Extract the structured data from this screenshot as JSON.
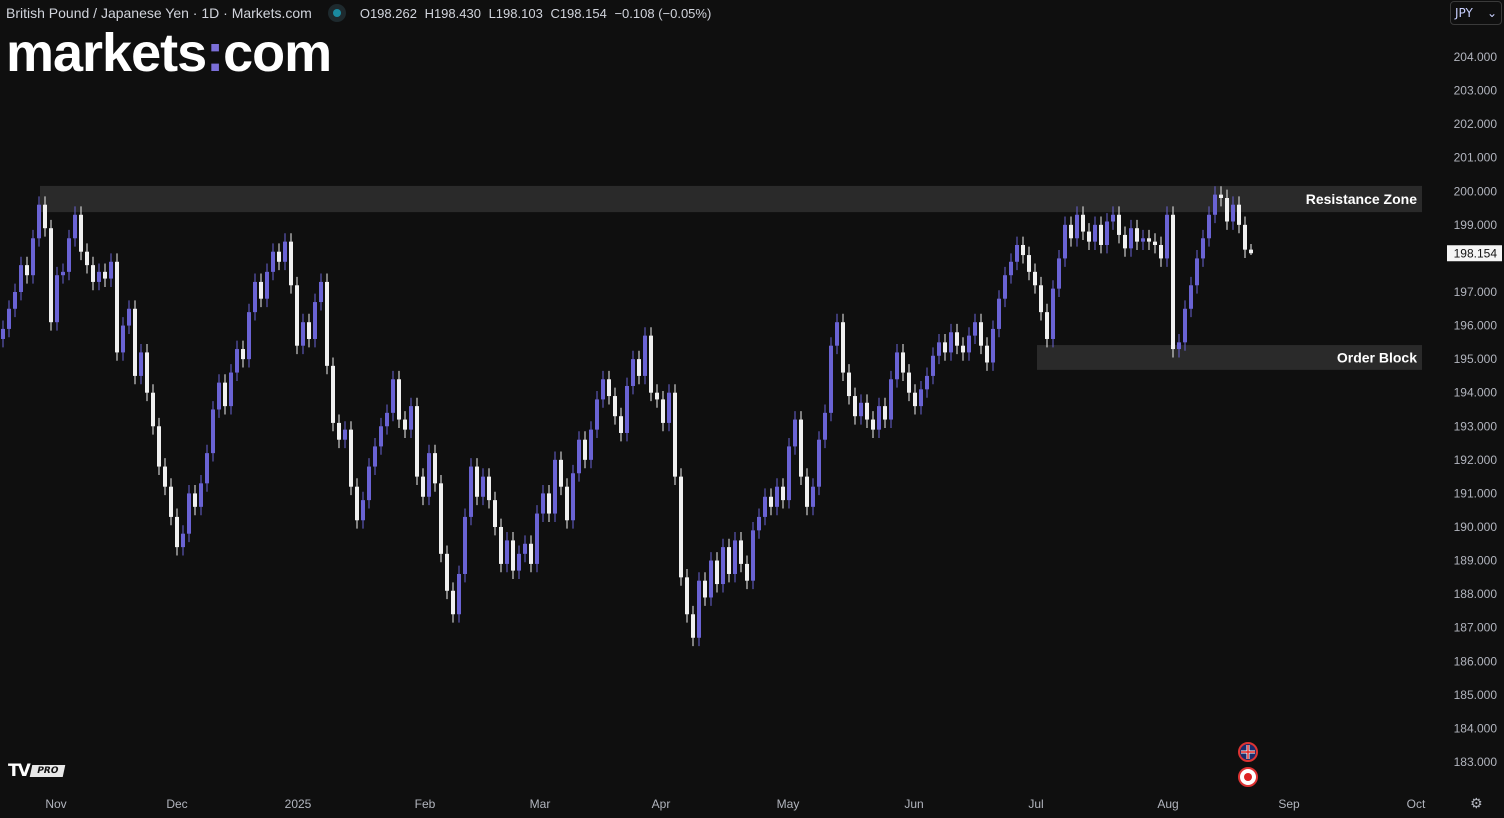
{
  "header": {
    "symbol_title": "British Pound / Japanese Yen · 1D · Markets.com",
    "ohlc": {
      "open": "O198.262",
      "high": "H198.430",
      "low": "L198.103",
      "close": "C198.154",
      "change": "−0.108 (−0.05%)"
    }
  },
  "logo": {
    "left": "markets",
    "sep": ":",
    "right": "com"
  },
  "currency_selector": {
    "value": "JPY",
    "icon": "chevron-down-icon"
  },
  "branding": {
    "tv": "TV",
    "pro": "PRO"
  },
  "events": [
    {
      "icon": "uk-flag-icon"
    },
    {
      "icon": "japan-flag-icon"
    }
  ],
  "colors": {
    "up": "#6a63d4",
    "down": "#f0f0f0",
    "zone": "#2a2a2a",
    "background": "#0f0f0f"
  },
  "chart_data": {
    "type": "candlestick",
    "title": "British Pound / Japanese Yen · 1D",
    "ylim": [
      182.7,
      204.4
    ],
    "y_ticks": [
      "204.000",
      "203.000",
      "202.000",
      "201.000",
      "200.000",
      "199.000",
      "197.000",
      "196.000",
      "195.000",
      "194.000",
      "193.000",
      "192.000",
      "191.000",
      "190.000",
      "189.000",
      "188.000",
      "187.000",
      "186.000",
      "185.000",
      "184.000",
      "183.000"
    ],
    "x_ticks": [
      "Nov",
      "Dec",
      "2025",
      "Feb",
      "Mar",
      "Apr",
      "May",
      "Jun",
      "Jul",
      "Aug",
      "Sep",
      "Oct"
    ],
    "last_price_label": "198.154",
    "last_candle": {
      "open": 198.262,
      "high": 198.43,
      "low": 198.103,
      "close": 198.154
    },
    "first_open": 195.6,
    "closes": [
      195.9,
      196.5,
      197.0,
      197.8,
      197.5,
      198.6,
      199.6,
      198.9,
      196.1,
      197.5,
      197.6,
      198.6,
      199.3,
      198.2,
      197.8,
      197.3,
      197.6,
      197.4,
      197.9,
      195.2,
      196.0,
      196.5,
      194.5,
      195.2,
      194.0,
      193.0,
      191.8,
      191.2,
      190.3,
      189.4,
      189.8,
      191.0,
      190.6,
      191.3,
      192.2,
      193.5,
      194.3,
      193.6,
      194.6,
      195.3,
      195.0,
      196.4,
      197.3,
      196.8,
      197.6,
      198.2,
      197.9,
      198.5,
      197.2,
      195.4,
      196.1,
      195.6,
      196.7,
      197.3,
      194.8,
      193.1,
      192.6,
      192.9,
      191.2,
      190.2,
      190.8,
      191.8,
      192.4,
      193.0,
      193.4,
      194.4,
      193.2,
      192.9,
      193.6,
      191.5,
      190.9,
      192.2,
      191.3,
      189.2,
      188.1,
      187.4,
      188.6,
      190.3,
      191.8,
      190.9,
      191.5,
      190.8,
      190.0,
      188.9,
      189.6,
      188.7,
      189.2,
      189.5,
      188.9,
      190.4,
      191.0,
      190.4,
      192.0,
      191.2,
      190.2,
      191.6,
      192.6,
      192.0,
      192.9,
      193.8,
      194.4,
      193.9,
      193.3,
      192.8,
      194.2,
      195.0,
      194.5,
      195.7,
      194.0,
      193.8,
      193.1,
      194.0,
      191.5,
      188.5,
      187.4,
      186.7,
      188.4,
      187.9,
      189.0,
      188.3,
      189.4,
      188.6,
      189.6,
      188.9,
      188.4,
      189.9,
      190.3,
      190.9,
      190.6,
      191.2,
      190.8,
      192.4,
      193.2,
      191.5,
      190.6,
      191.2,
      192.6,
      193.4,
      195.4,
      196.1,
      194.6,
      193.9,
      193.3,
      193.7,
      193.2,
      192.9,
      193.6,
      193.2,
      194.4,
      195.2,
      194.6,
      194.0,
      193.6,
      194.1,
      194.5,
      195.1,
      195.5,
      195.2,
      195.8,
      195.4,
      195.2,
      195.7,
      196.1,
      195.4,
      194.9,
      195.9,
      196.8,
      197.5,
      197.9,
      198.4,
      198.1,
      197.6,
      197.2,
      196.4,
      195.6,
      197.1,
      198.0,
      199.0,
      198.6,
      199.3,
      198.8,
      198.5,
      199.0,
      198.4,
      199.1,
      199.3,
      198.7,
      198.3,
      198.9,
      198.5,
      198.6,
      198.5,
      198.4,
      198.0,
      199.3,
      195.3,
      195.5,
      196.5,
      197.2,
      198.0,
      198.6,
      199.3,
      199.9,
      199.8,
      199.1,
      199.6,
      199.0,
      198.262,
      198.154
    ],
    "wick_extension": 0.25,
    "zones": [
      {
        "label": "Resistance Zone",
        "low": 199.38,
        "high": 200.16
      },
      {
        "label": "Order Block",
        "low": 194.68,
        "high": 195.42
      }
    ]
  }
}
